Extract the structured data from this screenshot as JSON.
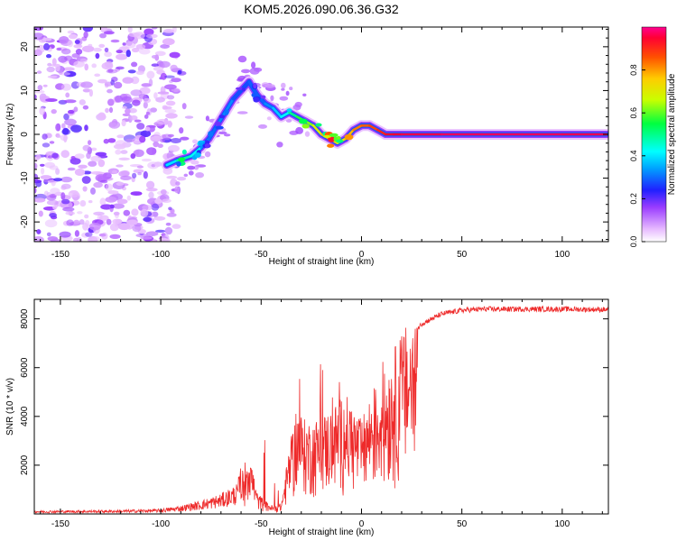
{
  "figure": {
    "title": "KOM5.2026.090.06.36.G32"
  },
  "chart_data": [
    {
      "type": "heatmap",
      "title": "KOM5.2026.090.06.36.G32",
      "xlabel": "Height of straight line (km)",
      "ylabel": "Frequency (Hz)",
      "xlim": [
        -163,
        123
      ],
      "ylim": [
        -24.5,
        24.5
      ],
      "xticks": [
        -150,
        -100,
        -50,
        0,
        50,
        100
      ],
      "yticks": [
        -20,
        -10,
        0,
        10,
        20
      ],
      "colorbar": {
        "label": "Normalized spectral amplitude",
        "range": [
          0,
          1
        ],
        "ticks": [
          0.0,
          0.2,
          0.4,
          0.6,
          0.8
        ]
      },
      "noise_region_x": [
        -163,
        -92
      ],
      "ridge": {
        "x": [
          -97,
          -92,
          -85,
          -80,
          -76,
          -72,
          -68,
          -64,
          -60,
          -56,
          -52,
          -48,
          -44,
          -40,
          -36,
          -32,
          -28,
          -24,
          -20,
          -16,
          -12,
          -8,
          -4,
          0,
          4,
          8,
          12,
          16,
          20,
          40,
          60,
          80,
          100,
          122
        ],
        "y": [
          -7,
          -6,
          -5,
          -3,
          -1,
          2,
          5,
          8,
          10,
          12,
          9,
          7,
          6,
          4,
          5,
          4,
          3,
          2,
          0,
          -1,
          -2,
          -1,
          1,
          2,
          2,
          1,
          0,
          0,
          0,
          0,
          0,
          0,
          0,
          0
        ],
        "amplitude": [
          0.35,
          0.45,
          0.5,
          0.35,
          0.3,
          0.3,
          0.35,
          0.3,
          0.25,
          0.3,
          0.28,
          0.3,
          0.35,
          0.4,
          0.45,
          0.55,
          0.6,
          0.65,
          0.75,
          0.8,
          0.7,
          0.75,
          0.8,
          0.85,
          0.85,
          0.9,
          0.92,
          0.95,
          0.95,
          0.97,
          0.97,
          0.97,
          0.97,
          0.96
        ]
      }
    },
    {
      "type": "line",
      "xlabel": "Height of straight line (km)",
      "ylabel": "SNR (10 * v/v)",
      "xlim": [
        -163,
        123
      ],
      "ylim": [
        0,
        8800
      ],
      "xticks": [
        -150,
        -100,
        -50,
        0,
        50,
        100
      ],
      "yticks": [
        2000,
        4000,
        6000,
        8000
      ],
      "color": "#ee2a2a",
      "envelope": {
        "x": [
          -163,
          -120,
          -100,
          -90,
          -80,
          -70,
          -62,
          -56,
          -52,
          -48,
          -44,
          -40,
          -36,
          -32,
          -28,
          -24,
          -20,
          -16,
          -12,
          -8,
          -4,
          0,
          5,
          10,
          15,
          20,
          25,
          30,
          40,
          50,
          60,
          80,
          100,
          123
        ],
        "y": [
          100,
          120,
          150,
          250,
          400,
          600,
          900,
          2500,
          800,
          500,
          300,
          400,
          2500,
          4000,
          3500,
          3500,
          3700,
          3900,
          4200,
          4500,
          4000,
          3500,
          4600,
          5000,
          6000,
          6800,
          7300,
          7800,
          8200,
          8350,
          8400,
          8400,
          8400,
          8380
        ]
      }
    }
  ]
}
